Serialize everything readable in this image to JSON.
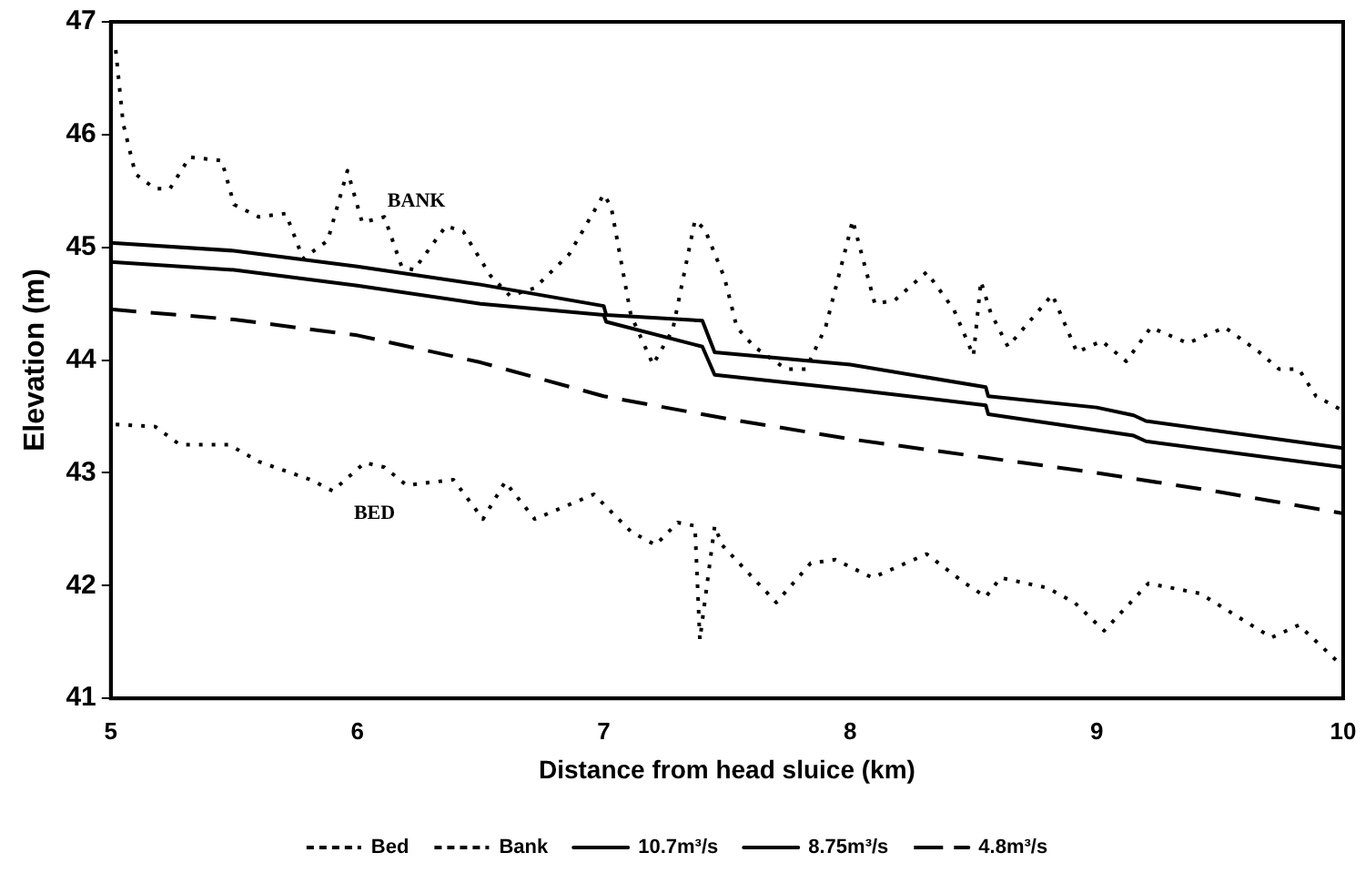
{
  "chart_data": {
    "type": "line",
    "xlabel": "Distance from head sluice (km)",
    "ylabel": "Elevation (m)",
    "xlim": [
      5,
      10
    ],
    "xticks": [
      5,
      6,
      7,
      8,
      9,
      10
    ],
    "ylim": [
      41,
      47
    ],
    "yticks": [
      41,
      42,
      43,
      44,
      45,
      46,
      47
    ],
    "grid": false,
    "legend": "bottom",
    "marker": "none",
    "annotations": [
      "BANK",
      "BED"
    ],
    "series": [
      {
        "name": "Bed",
        "color": "#000000",
        "line_style": "dotted",
        "x": [
          5.02,
          5.18,
          5.28,
          5.48,
          5.6,
          5.81,
          5.9,
          6.03,
          6.11,
          6.2,
          6.39,
          6.51,
          6.6,
          6.72,
          6.96,
          7.11,
          7.21,
          7.3,
          7.37,
          7.39,
          7.45,
          7.48,
          7.7,
          7.84,
          7.94,
          8.09,
          8.31,
          8.46,
          8.55,
          8.61,
          8.8,
          8.91,
          9.03,
          9.21,
          9.42,
          9.59,
          9.71,
          9.82,
          10
        ],
        "values": [
          43.43,
          43.41,
          43.25,
          43.25,
          43.1,
          42.94,
          42.84,
          43.09,
          43.05,
          42.89,
          42.94,
          42.59,
          42.92,
          42.59,
          42.81,
          42.48,
          42.36,
          42.56,
          42.53,
          41.52,
          42.53,
          42.36,
          41.85,
          42.2,
          42.23,
          42.07,
          42.28,
          42.03,
          41.9,
          42.07,
          41.98,
          41.85,
          41.6,
          42.02,
          41.93,
          41.7,
          41.54,
          41.65,
          41.28
        ]
      },
      {
        "name": "Bank",
        "color": "#000000",
        "line_style": "dotted",
        "x": [
          5.02,
          5.05,
          5.1,
          5.18,
          5.24,
          5.32,
          5.45,
          5.5,
          5.6,
          5.71,
          5.78,
          5.88,
          5.96,
          6.02,
          6.11,
          6.18,
          6.23,
          6.36,
          6.43,
          6.54,
          6.62,
          6.72,
          6.86,
          7.0,
          7.03,
          7.11,
          7.2,
          7.28,
          7.37,
          7.41,
          7.49,
          7.54,
          7.61,
          7.74,
          7.82,
          7.9,
          7.99,
          8.01,
          8.1,
          8.18,
          8.31,
          8.42,
          8.5,
          8.53,
          8.57,
          8.64,
          8.82,
          8.92,
          9.02,
          9.12,
          9.22,
          9.37,
          9.52,
          9.66,
          9.74,
          9.82,
          9.89,
          10
        ],
        "values": [
          46.75,
          46.1,
          45.65,
          45.52,
          45.52,
          45.8,
          45.77,
          45.38,
          45.27,
          45.3,
          44.9,
          45.06,
          45.68,
          45.22,
          45.27,
          44.83,
          44.8,
          45.19,
          45.14,
          44.75,
          44.57,
          44.64,
          44.94,
          45.47,
          45.36,
          44.4,
          43.96,
          44.27,
          45.24,
          45.16,
          44.73,
          44.29,
          44.12,
          43.92,
          43.92,
          44.29,
          45.06,
          45.24,
          44.5,
          44.53,
          44.78,
          44.45,
          44.04,
          44.7,
          44.42,
          44.12,
          44.58,
          44.07,
          44.17,
          43.99,
          44.29,
          44.15,
          44.29,
          44.07,
          43.92,
          43.92,
          43.68,
          43.55
        ]
      },
      {
        "name": "10.7m³/s",
        "color": "#000000",
        "line_style": "solid",
        "x": [
          5,
          5.5,
          6,
          6.5,
          7,
          7.01,
          7.4,
          7.45,
          8,
          8.55,
          8.56,
          9,
          9.15,
          9.2,
          10
        ],
        "values": [
          45.04,
          44.97,
          44.83,
          44.67,
          44.48,
          44.4,
          44.35,
          44.07,
          43.96,
          43.76,
          43.68,
          43.58,
          43.51,
          43.46,
          43.22
        ]
      },
      {
        "name": "8.75m³/s",
        "color": "#000000",
        "line_style": "solid",
        "x": [
          5,
          5.5,
          6,
          6.5,
          7,
          7.01,
          7.4,
          7.45,
          8,
          8.55,
          8.56,
          9,
          9.15,
          9.2,
          10
        ],
        "values": [
          44.87,
          44.8,
          44.66,
          44.5,
          44.4,
          44.34,
          44.12,
          43.87,
          43.74,
          43.6,
          43.52,
          43.38,
          43.33,
          43.28,
          43.05
        ]
      },
      {
        "name": "4.8m³/s",
        "color": "#000000",
        "line_style": "dashed",
        "x": [
          5,
          5.5,
          6,
          6.5,
          7,
          7.5,
          8,
          8.5,
          9,
          9.5,
          10
        ],
        "values": [
          44.45,
          44.36,
          44.22,
          43.98,
          43.68,
          43.48,
          43.3,
          43.15,
          43.0,
          42.83,
          42.64
        ]
      }
    ]
  }
}
